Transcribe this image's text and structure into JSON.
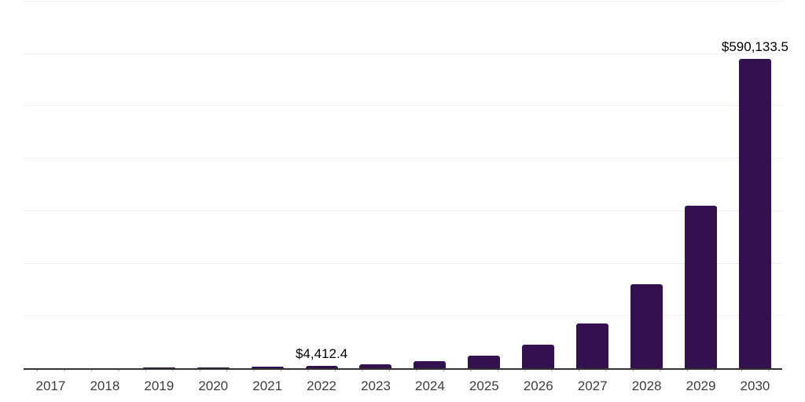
{
  "chart_data": {
    "type": "bar",
    "title": "",
    "xlabel": "",
    "ylabel": "",
    "legend": "none",
    "grid": true,
    "categories": [
      "2017",
      "2018",
      "2019",
      "2020",
      "2021",
      "2022",
      "2023",
      "2024",
      "2025",
      "2026",
      "2027",
      "2028",
      "2029",
      "2030"
    ],
    "values": [
      250,
      500,
      900,
      1500,
      2600,
      4412.4,
      7800,
      13500,
      24000,
      45500,
      85000,
      160000,
      310000,
      590133.5
    ],
    "data_labels": [
      null,
      null,
      null,
      null,
      null,
      "$4,412.4",
      null,
      null,
      null,
      null,
      null,
      null,
      null,
      "$590,133.5"
    ],
    "ylim": [
      0,
      700000
    ],
    "gridline_interval": 100000,
    "colors": {
      "bar": "#33114E",
      "axis_line": "#333333",
      "gridline": "#EFEFEF",
      "tick_label": "#3D3D3D",
      "data_label": "#000000",
      "background": "#FFFFFF"
    }
  }
}
